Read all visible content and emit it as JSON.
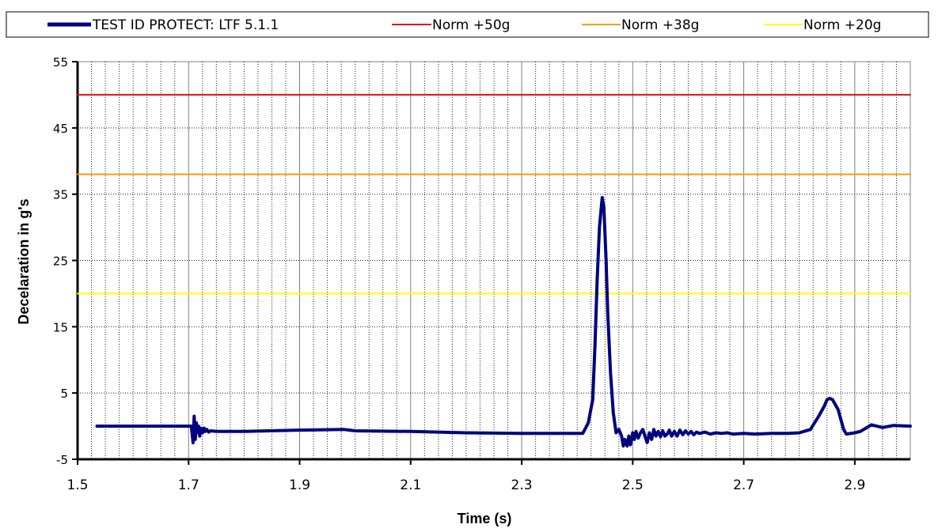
{
  "chart_data": {
    "type": "line",
    "xlabel": "Time (s)",
    "ylabel": "Decelaration in g's",
    "xlim": [
      1.5,
      3.0
    ],
    "ylim": [
      -5,
      55
    ],
    "x_ticks": [
      1.5,
      1.7,
      1.9,
      2.1,
      2.3,
      2.5,
      2.7,
      2.9
    ],
    "x_tick_labels": [
      "1.5",
      "1.7",
      "1.9",
      "2.1",
      "2.3",
      "2.5",
      "2.7",
      "2.9"
    ],
    "y_ticks": [
      -5,
      5,
      15,
      25,
      35,
      45,
      55
    ],
    "y_tick_labels": [
      "-5",
      "5",
      "15",
      "25",
      "35",
      "45",
      "55"
    ],
    "minor_x_step": 0.025,
    "grid": true,
    "legend_position": "top",
    "series": [
      {
        "name": "TEST ID PROTECT: LTF 5.1.1",
        "color": "#000080",
        "x": [
          1.535,
          1.6,
          1.65,
          1.705,
          1.708,
          1.71,
          1.712,
          1.714,
          1.716,
          1.718,
          1.72,
          1.722,
          1.725,
          1.728,
          1.73,
          1.733,
          1.736,
          1.74,
          1.75,
          1.8,
          1.9,
          1.98,
          2.0,
          2.1,
          2.2,
          2.3,
          2.35,
          2.41,
          2.42,
          2.428,
          2.432,
          2.436,
          2.44,
          2.445,
          2.448,
          2.452,
          2.455,
          2.46,
          2.465,
          2.47,
          2.475,
          2.48,
          2.483,
          2.486,
          2.49,
          2.493,
          2.496,
          2.5,
          2.503,
          2.506,
          2.51,
          2.514,
          2.518,
          2.522,
          2.526,
          2.53,
          2.534,
          2.538,
          2.542,
          2.546,
          2.55,
          2.554,
          2.558,
          2.562,
          2.566,
          2.57,
          2.575,
          2.58,
          2.585,
          2.59,
          2.595,
          2.6,
          2.605,
          2.61,
          2.615,
          2.62,
          2.63,
          2.64,
          2.65,
          2.66,
          2.67,
          2.68,
          2.7,
          2.72,
          2.75,
          2.78,
          2.8,
          2.82,
          2.835,
          2.845,
          2.85,
          2.855,
          2.86,
          2.87,
          2.88,
          2.885,
          2.9,
          2.91,
          2.93,
          2.95,
          2.97,
          3.0
        ],
        "y": [
          0,
          0,
          0,
          0,
          -2.5,
          1.5,
          -2,
          0.5,
          -1,
          0,
          -1.5,
          -0.3,
          -1,
          -0.3,
          -0.8,
          -0.5,
          -0.9,
          -0.7,
          -0.8,
          -0.8,
          -0.6,
          -0.5,
          -0.7,
          -0.8,
          -1.0,
          -1.1,
          -1.1,
          -1.1,
          0.5,
          4.0,
          12.0,
          22.0,
          30.0,
          34.5,
          33.0,
          25.0,
          17.0,
          8.0,
          2.0,
          -1.0,
          -0.5,
          -1.5,
          -3.0,
          -2.0,
          -3.0,
          -1.5,
          -2.8,
          -1.0,
          -2.0,
          -0.8,
          -1.8,
          -1.0,
          -0.5,
          -1.5,
          -2.5,
          -1.0,
          -2.0,
          -0.5,
          -1.5,
          -0.8,
          -1.6,
          -0.7,
          -1.5,
          -1.2,
          -0.6,
          -1.5,
          -0.8,
          -1.5,
          -0.6,
          -1.3,
          -0.7,
          -1.2,
          -0.8,
          -1.3,
          -0.9,
          -1.1,
          -0.9,
          -1.2,
          -1.0,
          -1.1,
          -1.0,
          -1.2,
          -1.1,
          -1.2,
          -1.1,
          -1.1,
          -1.0,
          -0.5,
          1.5,
          3.0,
          4.0,
          4.2,
          4.0,
          2.5,
          -0.5,
          -1.2,
          -1.0,
          -0.8,
          0.2,
          -0.2,
          0.1,
          0
        ]
      },
      {
        "name": "Norm +50g",
        "color": "#e01010",
        "x": [
          1.5,
          3.0
        ],
        "y": [
          50,
          50
        ]
      },
      {
        "name": "Norm +38g",
        "color": "#ff9900",
        "x": [
          1.5,
          3.0
        ],
        "y": [
          38,
          38
        ]
      },
      {
        "name": "Norm +20g",
        "color": "#ffff00",
        "x": [
          1.5,
          3.0
        ],
        "y": [
          20,
          20
        ]
      }
    ]
  }
}
